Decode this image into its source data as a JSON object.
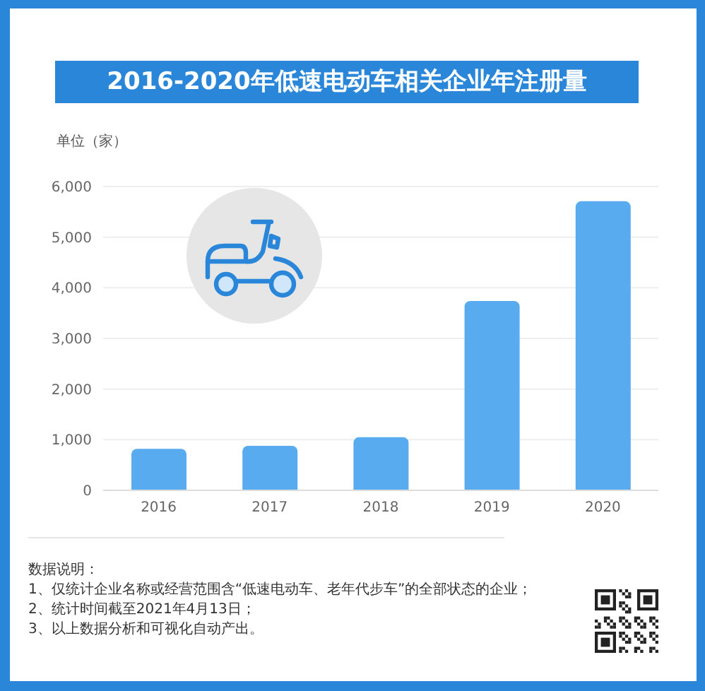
{
  "chart_data": {
    "type": "bar",
    "title": "2016-2020年低速电动车相关企业年注册量",
    "ylabel": "单位（家）",
    "categories": [
      "2016",
      "2017",
      "2018",
      "2019",
      "2020"
    ],
    "values": [
      820,
      880,
      1050,
      3740,
      5710
    ],
    "color": "#58abee",
    "ylim": [
      0,
      6000
    ],
    "yticks": [
      0,
      {
        "value": 1000,
        "label": "1,000"
      },
      {
        "value": 2000,
        "label": "2,000"
      },
      {
        "value": 3000,
        "label": "3,000"
      },
      {
        "value": 4000,
        "label": "4,000"
      },
      {
        "value": 5000,
        "label": "5,000"
      },
      {
        "value": 6000,
        "label": "6,000"
      }
    ],
    "grid": "y",
    "annotations": [
      "数据说明：",
      "1、仅统计企业名称或经营范围含“低速电动车、老年代步车”的全部状态的企业；",
      "2、统计时间截至2021年4月13日；",
      "3、以上数据分析和可视化自动产出。"
    ]
  }
}
